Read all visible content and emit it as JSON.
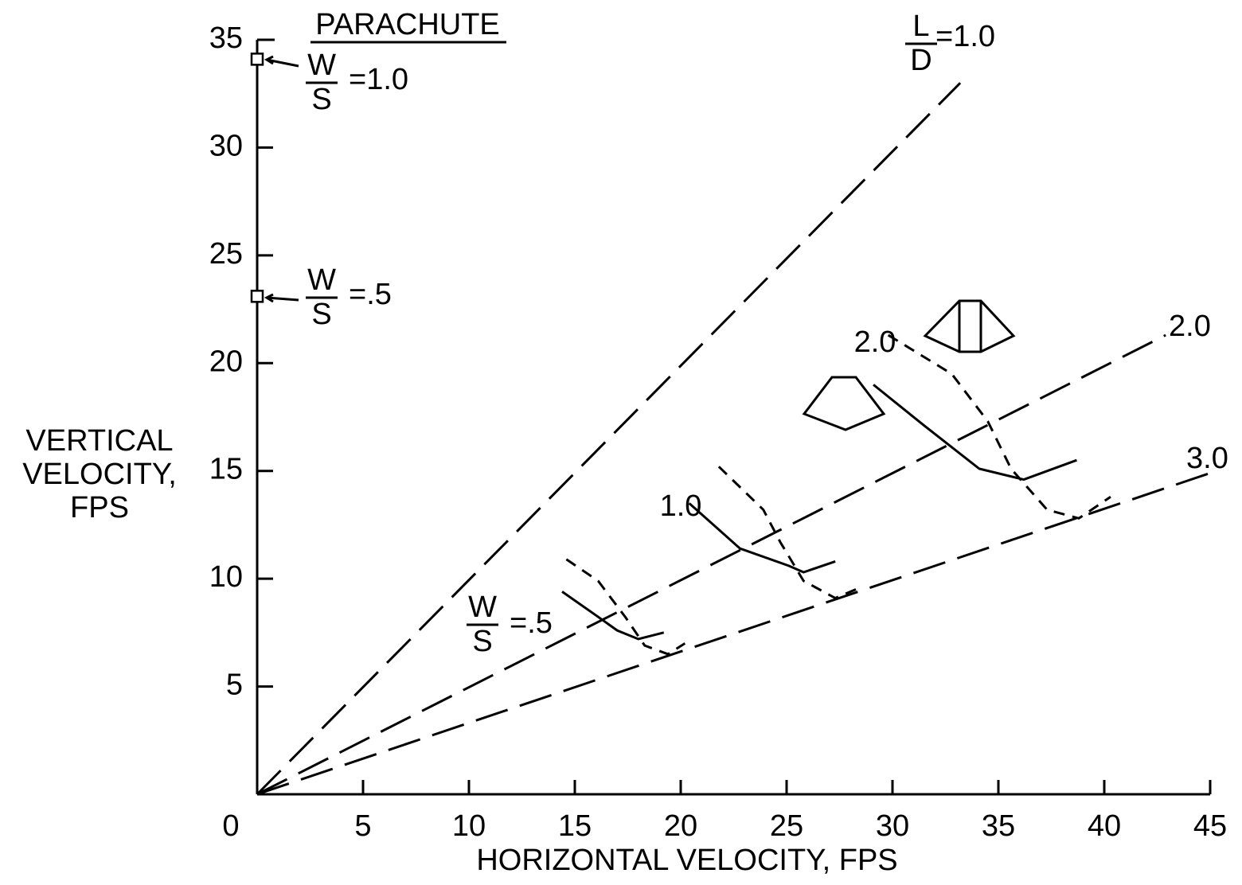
{
  "chart_data": {
    "type": "line",
    "x_label": "HORIZONTAL VELOCITY, FPS",
    "y_label": [
      "VERTICAL",
      "VELOCITY,",
      "FPS"
    ],
    "xlim": [
      0,
      45
    ],
    "ylim": [
      0,
      35
    ],
    "xticks": [
      0,
      5,
      10,
      15,
      20,
      25,
      30,
      35,
      40,
      45
    ],
    "yticks": [
      5,
      10,
      15,
      20,
      25,
      30,
      35
    ],
    "color": "#000000",
    "line_label_fraction": [
      "L",
      "D"
    ],
    "series": [
      {
        "name": "=1.0",
        "x": [
          0,
          33.2
        ],
        "values": [
          0,
          33.0
        ]
      },
      {
        "name": "2.0",
        "x": [
          0,
          42.9
        ],
        "values": [
          0,
          21.3
        ]
      },
      {
        "name": "3.0",
        "x": [
          0,
          45
        ],
        "values": [
          0,
          14.9
        ]
      }
    ],
    "curve_label_fraction": [
      "W",
      "S"
    ],
    "curves": [
      {
        "name": "=.5",
        "solid": {
          "x": [
            14.4,
            16,
            17,
            18,
            19.2
          ],
          "values": [
            9.4,
            8.3,
            7.6,
            7.2,
            7.5
          ]
        },
        "dashed": {
          "x": [
            14.6,
            16.1,
            17.4,
            18.3,
            19.4,
            20.2
          ],
          "values": [
            10.9,
            9.9,
            8.2,
            6.9,
            6.5,
            7.0
          ]
        }
      },
      {
        "name": "1.0",
        "solid": {
          "x": [
            20.4,
            22.8,
            25.1,
            25.8,
            27.3
          ],
          "values": [
            13.5,
            11.4,
            10.6,
            10.3,
            10.8
          ]
        },
        "dashed": {
          "x": [
            21.8,
            23.9,
            24.7,
            25.8,
            27.3,
            28.5
          ],
          "values": [
            15.2,
            13.2,
            11.7,
            9.9,
            9.1,
            9.6
          ]
        }
      },
      {
        "name": "2.0",
        "solid": {
          "x": [
            29.1,
            31.5,
            34.1,
            36.2,
            38.7
          ],
          "values": [
            19.0,
            17.1,
            15.1,
            14.6,
            15.5
          ]
        },
        "dashed": {
          "x": [
            29.8,
            32.8,
            34.5,
            35.6,
            37.3,
            38.8,
            40.3
          ],
          "values": [
            21.3,
            19.5,
            17.3,
            15.1,
            13.2,
            12.8,
            13.8
          ]
        }
      }
    ],
    "parachute": {
      "title": "PARACHUTE",
      "fraction": [
        "W",
        "S"
      ],
      "points": [
        {
          "label": "=1.0",
          "value": 34.1
        },
        {
          "label": "=.5",
          "value": 23.1
        }
      ]
    }
  }
}
